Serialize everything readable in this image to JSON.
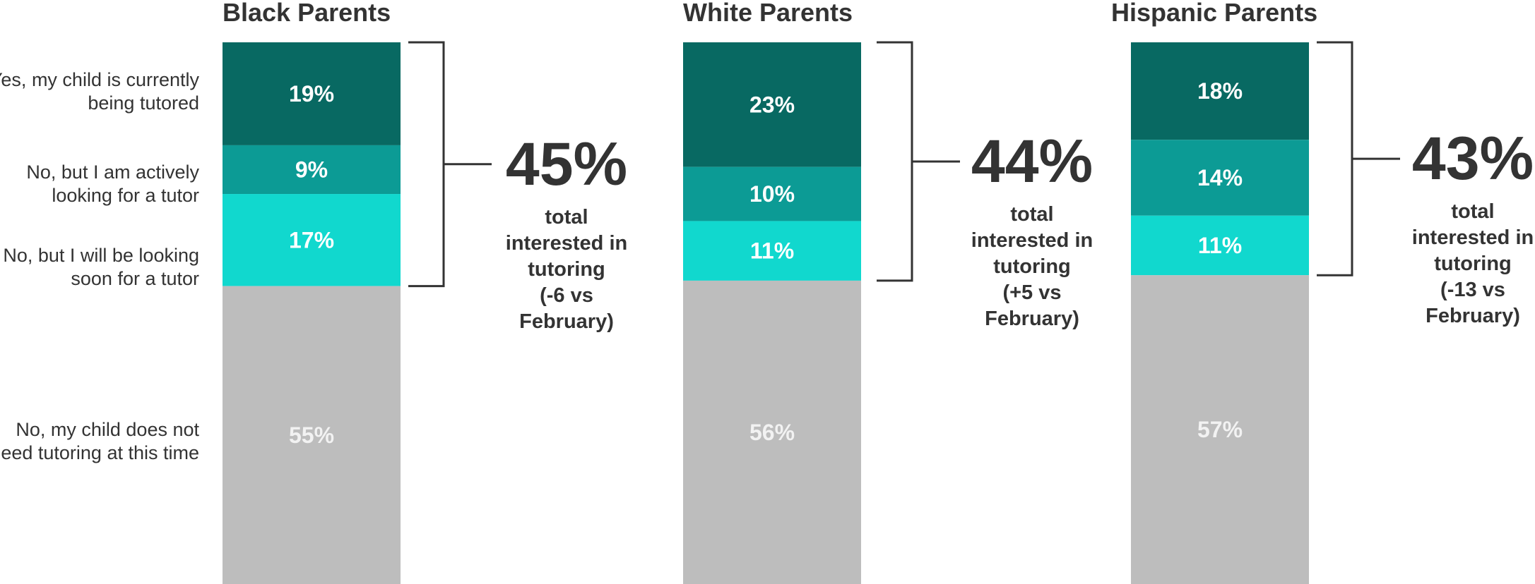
{
  "chart_data": {
    "type": "bar",
    "stacked": true,
    "orientation": "vertical",
    "categories": [
      "Black Parents",
      "White Parents",
      "Hispanic Parents"
    ],
    "series": [
      {
        "name": "Yes, my child is currently being tutored",
        "values": [
          19,
          23,
          18
        ],
        "color": "#086962"
      },
      {
        "name": "No, but I am actively looking for a tutor",
        "values": [
          9,
          10,
          14
        ],
        "color": "#0c9b95"
      },
      {
        "name": "No, but I will be looking soon for a tutor",
        "values": [
          17,
          11,
          11
        ],
        "color": "#11d8ce"
      },
      {
        "name": "No, my child does not need tutoring at this time",
        "values": [
          55,
          56,
          57
        ],
        "color": "#bdbdbd"
      }
    ],
    "value_format": "percent",
    "totals": [
      {
        "value": "45%",
        "text": [
          "total",
          "interested in",
          "tutoring",
          "(-6 vs",
          "February)"
        ]
      },
      {
        "value": "44%",
        "text": [
          "total",
          "interested in",
          "tutoring",
          "(+5 vs",
          "February)"
        ]
      },
      {
        "value": "43%",
        "text": [
          "total",
          "interested in",
          "tutoring",
          "(-13 vs",
          "February)"
        ]
      }
    ],
    "legend_placement": "left",
    "grid": false
  }
}
